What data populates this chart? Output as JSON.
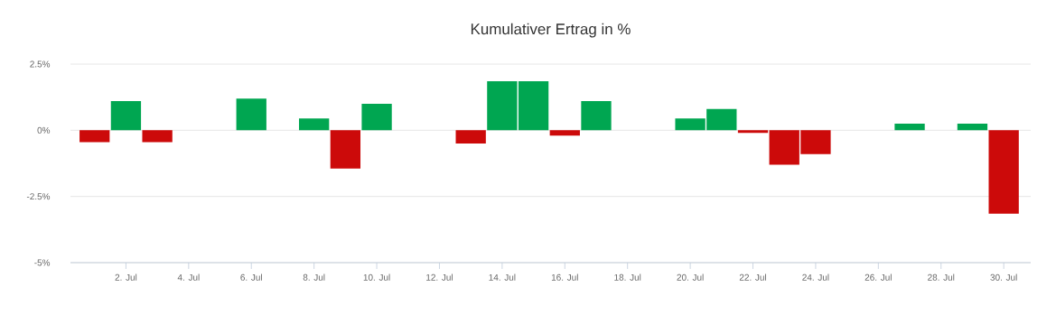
{
  "chart_data": {
    "type": "bar",
    "title": "Kumulativer Ertrag in %",
    "categories": [
      null,
      "2. Jul",
      null,
      "4. Jul",
      null,
      "6. Jul",
      null,
      "8. Jul",
      null,
      "10. Jul",
      null,
      "12. Jul",
      null,
      "14. Jul",
      null,
      "16. Jul",
      null,
      "18. Jul",
      null,
      "20. Jul",
      null,
      "22. Jul",
      null,
      "24. Jul",
      null,
      "26. Jul",
      null,
      "28. Jul",
      null,
      "30. Jul"
    ],
    "values": [
      -0.45,
      1.1,
      -0.45,
      0,
      0,
      1.2,
      0,
      0.45,
      -1.45,
      1.0,
      0,
      0,
      -0.5,
      1.85,
      1.85,
      -0.2,
      1.1,
      0,
      0,
      0.45,
      0.8,
      -0.1,
      -1.3,
      -0.9,
      0,
      0,
      0.25,
      0,
      0.25,
      -3.15
    ],
    "colors": [
      "#cc0a0a",
      "#00a651",
      "#cc0a0a",
      "#00a651",
      "#00a651",
      "#00a651",
      "#00a651",
      "#00a651",
      "#cc0a0a",
      "#00a651",
      "#00a651",
      "#00a651",
      "#cc0a0a",
      "#00a651",
      "#00a651",
      "#cc0a0a",
      "#00a651",
      "#00a651",
      "#00a651",
      "#00a651",
      "#00a651",
      "#cc0a0a",
      "#cc0a0a",
      "#cc0a0a",
      "#00a651",
      "#00a651",
      "#00a651",
      "#00a651",
      "#00a651",
      "#cc0a0a"
    ],
    "ylim": [
      -5,
      2.5
    ],
    "yticks": [
      {
        "value": -5,
        "label": "-5%"
      },
      {
        "value": -2.5,
        "label": "-2.5%"
      },
      {
        "value": 0,
        "label": "0%"
      },
      {
        "value": 2.5,
        "label": "2.5%"
      }
    ],
    "grid": "y"
  }
}
